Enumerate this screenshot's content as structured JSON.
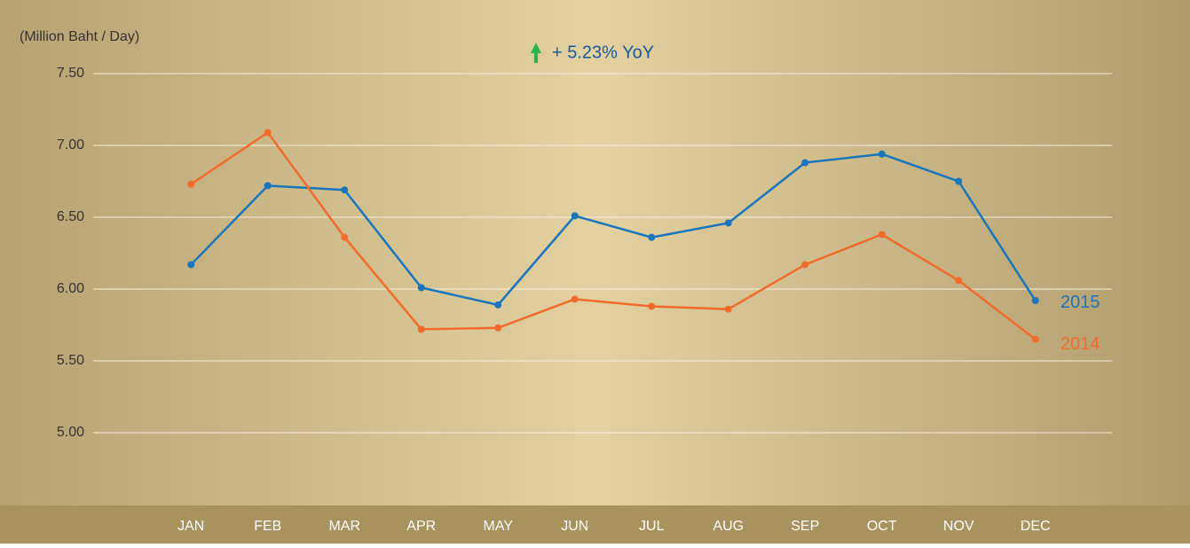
{
  "chart_data": {
    "type": "line",
    "y_axis_label": "(Million Baht / Day)",
    "annotation": "+ 5.23% YoY",
    "categories": [
      "JAN",
      "FEB",
      "MAR",
      "APR",
      "MAY",
      "JUN",
      "JUL",
      "AUG",
      "SEP",
      "OCT",
      "NOV",
      "DEC"
    ],
    "series": [
      {
        "name": "2015",
        "color": "#1a75bb",
        "values": [
          6.17,
          6.72,
          6.69,
          6.01,
          5.89,
          6.51,
          6.36,
          6.46,
          6.88,
          6.94,
          6.75,
          5.92
        ]
      },
      {
        "name": "2014",
        "color": "#f26b2a",
        "values": [
          6.73,
          7.09,
          6.36,
          5.72,
          5.73,
          5.93,
          5.88,
          5.86,
          6.17,
          6.38,
          6.06,
          5.65
        ]
      }
    ],
    "ylim": [
      4.5,
      7.5
    ],
    "yticks": [
      {
        "value": 5,
        "label": "5.00"
      },
      {
        "value": 5.5,
        "label": "5.50"
      },
      {
        "value": 6,
        "label": "6.00"
      },
      {
        "value": 6.5,
        "label": "6.50"
      },
      {
        "value": 7,
        "label": "7.00"
      },
      {
        "value": 7.5,
        "label": "7.50"
      }
    ],
    "grid": true
  }
}
